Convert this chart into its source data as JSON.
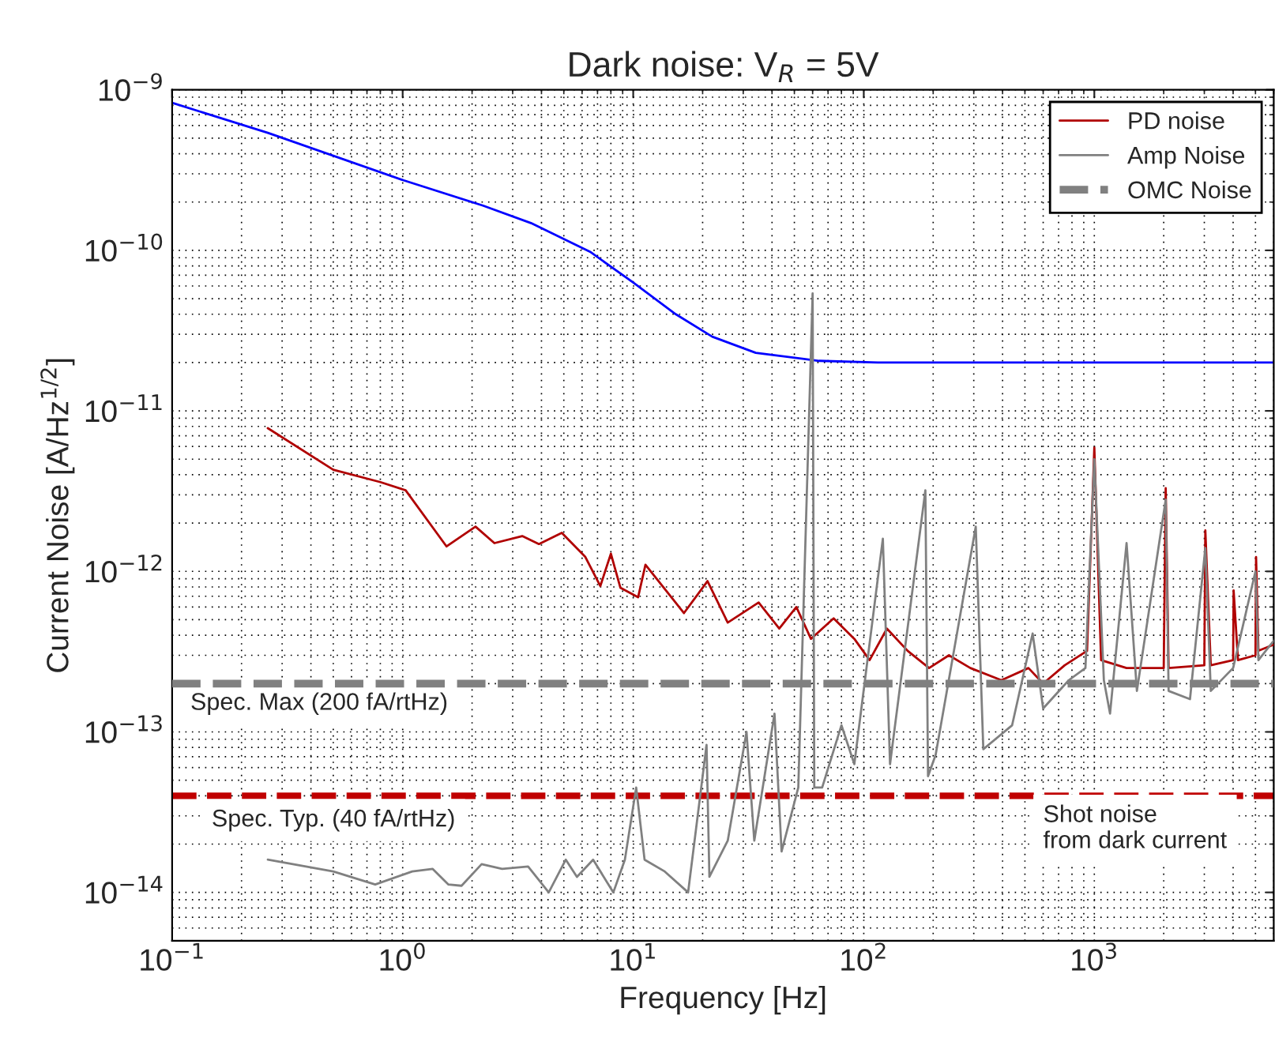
{
  "chart_data": {
    "type": "line",
    "title": "Dark noise: V$_{R}$ = 5V",
    "xlabel": "Frequency [Hz]",
    "ylabel": "Current Noise [A/Hz$^{1/2}$]",
    "log": "xy",
    "grid": true,
    "legend": "top right",
    "line_style": "solid",
    "marker": "none",
    "xlim": [
      0.1,
      6000
    ],
    "ylim": [
      5e-15,
      1e-09
    ],
    "xticks": [
      {
        "value": 0.1,
        "label": "10$^{−1}$"
      },
      {
        "value": 1,
        "label": "10$^{0}$"
      },
      {
        "value": 10,
        "label": "10$^{1}$"
      },
      {
        "value": 100,
        "label": "10$^{2}$"
      },
      {
        "value": 1000,
        "label": "10$^{3}$"
      }
    ],
    "yticks": [
      {
        "value": 1e-14,
        "label": "10$^{−14}$"
      },
      {
        "value": 1e-13,
        "label": "10$^{−13}$"
      },
      {
        "value": 1e-12,
        "label": "10$^{−12}$"
      },
      {
        "value": 1e-11,
        "label": "10$^{−11}$"
      },
      {
        "value": 1e-10,
        "label": "10$^{−10}$"
      },
      {
        "value": 1e-09,
        "label": "10$^{−9}$"
      }
    ],
    "series": [
      {
        "color": "#0000ff",
        "x": [
          0.1,
          0.26,
          1.01,
          2.23,
          3.6,
          6.5,
          10,
          15.3,
          22,
          34,
          64,
          115,
          6000
        ],
        "values": [
          8.3e-10,
          5.4e-10,
          2.73e-10,
          1.9e-10,
          1.48e-10,
          9.8e-11,
          6.3e-11,
          4e-11,
          2.9e-11,
          2.3e-11,
          2.05e-11,
          2e-11,
          2e-11
        ]
      },
      {
        "name": "PD noise",
        "color": "#b00000",
        "x": [
          0.26,
          0.5,
          0.8,
          1.03,
          1.55,
          2.07,
          2.5,
          3.3,
          3.9,
          4.9,
          6.2,
          7.2,
          8.0,
          8.8,
          10.5,
          11.3,
          16.6,
          21,
          25.7,
          35,
          43,
          51,
          59,
          74,
          91,
          106,
          126,
          155,
          192,
          234,
          290,
          395,
          518,
          600,
          744,
          930,
          1000,
          1070,
          1380,
          2000,
          2040,
          2100,
          3000,
          3030,
          3200,
          4000,
          4020,
          4200,
          5000,
          5030,
          5150,
          6000
        ],
        "values": [
          7.8e-12,
          4.3e-12,
          3.6e-12,
          3.2e-12,
          1.43e-12,
          1.9e-12,
          1.5e-12,
          1.66e-12,
          1.48e-12,
          1.74e-12,
          1.23e-12,
          8.1e-13,
          1.29e-12,
          7.9e-13,
          6.9e-13,
          1.1e-12,
          5.5e-13,
          8.7e-13,
          4.8e-13,
          6.4e-13,
          4.4e-13,
          6e-13,
          3.8e-13,
          5.1e-13,
          3.8e-13,
          2.8e-13,
          4.4e-13,
          3.2e-13,
          2.5e-13,
          3e-13,
          2.5e-13,
          2.1e-13,
          2.5e-13,
          2e-13,
          2.6e-13,
          3.2e-13,
          5.9e-12,
          2.8e-13,
          2.5e-13,
          2.5e-13,
          3.3e-12,
          2.5e-13,
          2.6e-13,
          1.8e-12,
          2.6e-13,
          2.8e-13,
          7.6e-13,
          2.8e-13,
          3e-13,
          1.23e-12,
          3.2e-13,
          3.5e-13
        ]
      },
      {
        "name": "Amp Noise",
        "color": "#808080",
        "x": [
          0.26,
          0.5,
          0.76,
          1.1,
          1.35,
          1.58,
          1.8,
          2.2,
          2.7,
          3.5,
          4.3,
          5.1,
          5.7,
          6.7,
          8.2,
          9.2,
          10.3,
          11.2,
          13.7,
          17.3,
          20.8,
          21.4,
          25.7,
          31,
          33.5,
          41,
          44,
          52,
          60,
          61,
          66,
          80,
          91,
          121,
          130,
          185,
          190,
          205,
          306,
          330,
          440,
          540,
          600,
          775,
          915,
          1000,
          1100,
          1170,
          1380,
          1530,
          2040,
          2100,
          2600,
          3030,
          3200,
          4000,
          5000,
          5150,
          6000
        ],
        "values": [
          1.6e-14,
          1.35e-14,
          1.12e-14,
          1.35e-14,
          1.4e-14,
          1.12e-14,
          1.1e-14,
          1.5e-14,
          1.4e-14,
          1.45e-14,
          1e-14,
          1.6e-14,
          1.25e-14,
          1.6e-14,
          1e-14,
          1.6e-14,
          4.5e-14,
          1.6e-14,
          1.35e-14,
          1e-14,
          8.3e-14,
          1.25e-14,
          2.1e-14,
          1e-13,
          2.1e-14,
          1.3e-13,
          1.8e-14,
          4.5e-14,
          5.4e-11,
          4.5e-14,
          4.5e-14,
          1.1e-13,
          6.3e-14,
          1.6e-12,
          6.3e-14,
          3.2e-12,
          5.3e-14,
          7.2e-14,
          1.9e-12,
          7.8e-14,
          1.1e-13,
          4.1e-13,
          1.4e-13,
          2.1e-13,
          2.5e-13,
          5e-12,
          2.1e-13,
          1.3e-13,
          1.5e-12,
          1.8e-13,
          2.8e-12,
          1.8e-13,
          1.6e-13,
          1.4e-12,
          1.8e-13,
          2.5e-13,
          1e-12,
          2.8e-13,
          3.7e-13
        ]
      },
      {
        "name": "OMC Noise",
        "color": "#808080",
        "line_style": "dashed",
        "x": [
          0.1,
          6000
        ],
        "values": [
          2e-13,
          2e-13
        ]
      }
    ],
    "ref_lines": [
      {
        "axis": "y",
        "value": 4e-14,
        "label": "Spec. Typ. (40 fA/rtHz)",
        "color": "#c00000",
        "line_style": "dashed"
      }
    ],
    "annotations": [
      {
        "text": "Spec. Max (200 fA/rtHz)",
        "x": 0.12,
        "y": 2e-13
      },
      {
        "text": "Shot noise\nfrom dark current",
        "x": 600,
        "y": 4e-14
      }
    ]
  }
}
